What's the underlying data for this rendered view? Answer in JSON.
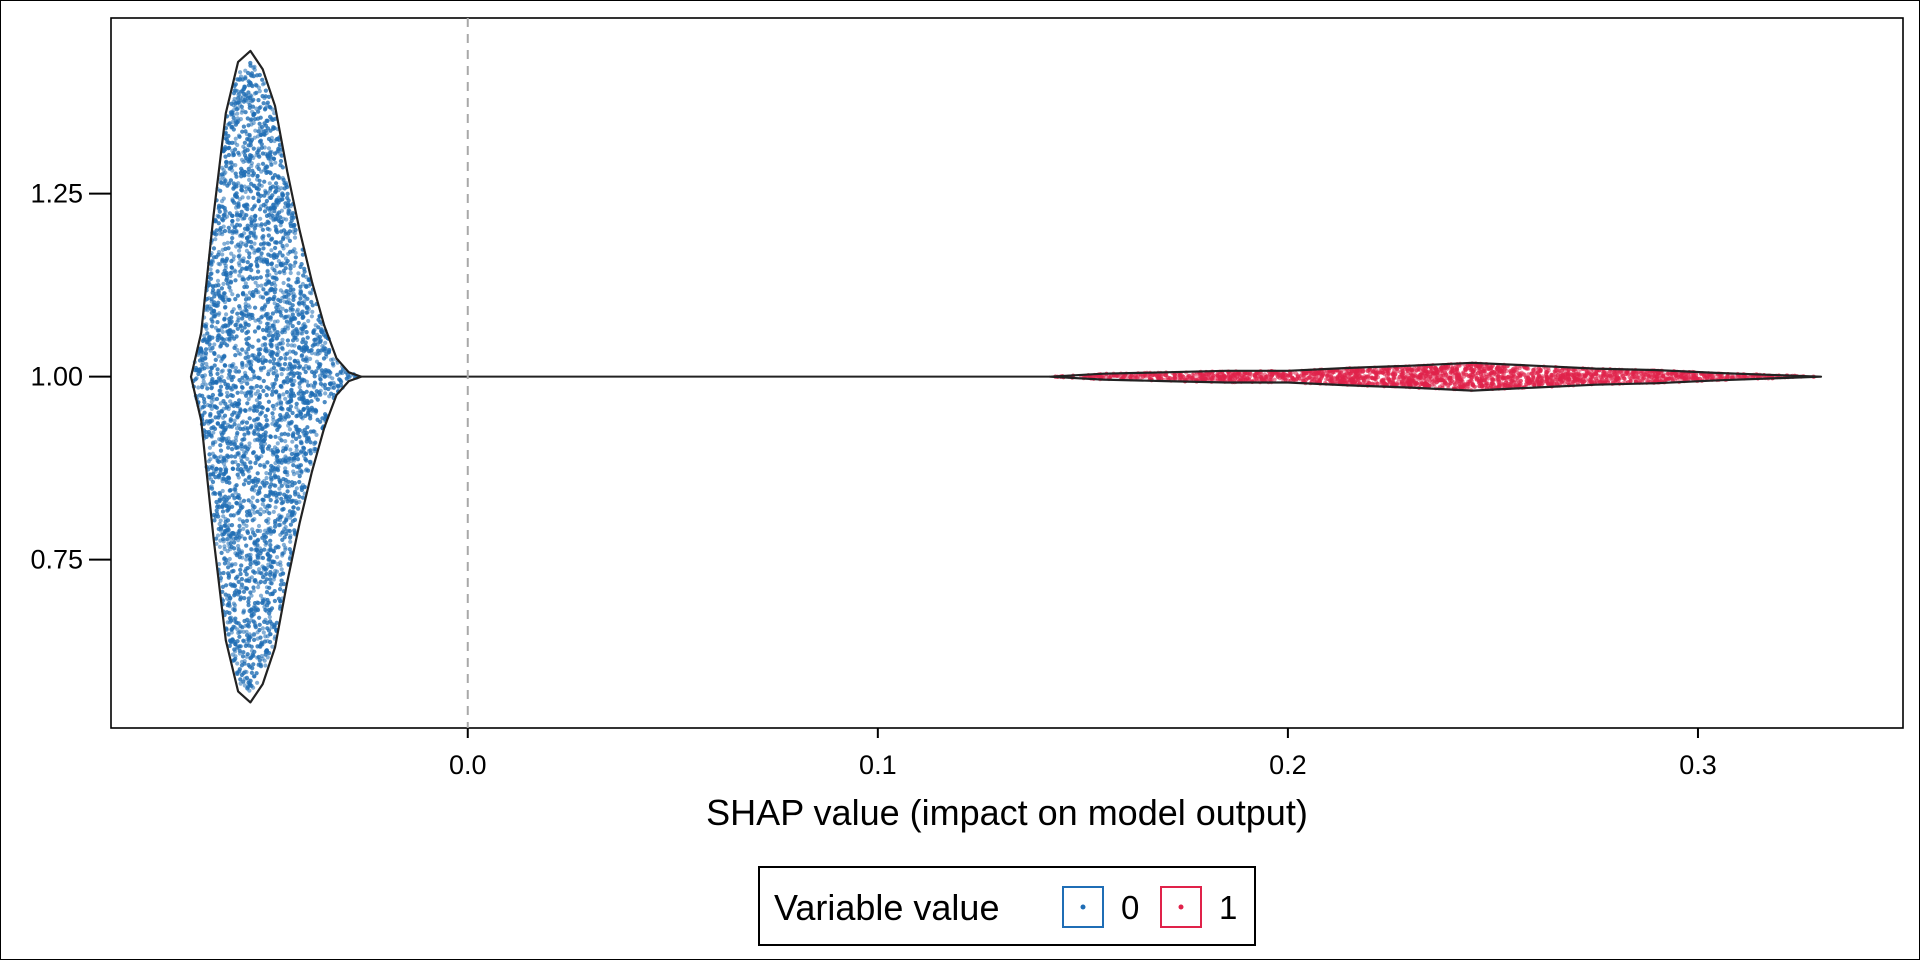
{
  "chart_data": {
    "type": "violin-beeswarm",
    "xlabel": "SHAP value (impact on model output)",
    "ylabel": "",
    "xlim": [
      -0.087,
      0.35
    ],
    "ylim": [
      0.52,
      1.49
    ],
    "x_ticks": [
      "0.0",
      "0.1",
      "0.2",
      "0.3"
    ],
    "x_tick_values": [
      0.0,
      0.1,
      0.2,
      0.3
    ],
    "y_ticks": [
      "0.75",
      "1.00",
      "1.25"
    ],
    "y_tick_values": [
      0.75,
      1.0,
      1.25
    ],
    "reference_line_x": 0.0,
    "grid": false,
    "legend": {
      "title": "Variable value",
      "placement": "bottom-center",
      "entries": [
        {
          "label": "0",
          "color": "#1f6db5"
        },
        {
          "label": "1",
          "color": "#e0224a"
        }
      ]
    },
    "series": [
      {
        "name": "0",
        "color": "#1f6db5",
        "shap_range": [
          -0.067,
          -0.026
        ],
        "y_range": [
          0.557,
          1.446
        ],
        "profile": [
          {
            "x": -0.0675,
            "half": 0.0
          },
          {
            "x": -0.065,
            "half": 0.06
          },
          {
            "x": -0.062,
            "half": 0.22
          },
          {
            "x": -0.059,
            "half": 0.36
          },
          {
            "x": -0.056,
            "half": 0.43
          },
          {
            "x": -0.053,
            "half": 0.445
          },
          {
            "x": -0.05,
            "half": 0.42
          },
          {
            "x": -0.047,
            "half": 0.37
          },
          {
            "x": -0.044,
            "half": 0.28
          },
          {
            "x": -0.041,
            "half": 0.2
          },
          {
            "x": -0.038,
            "half": 0.13
          },
          {
            "x": -0.035,
            "half": 0.07
          },
          {
            "x": -0.032,
            "half": 0.025
          },
          {
            "x": -0.029,
            "half": 0.006
          },
          {
            "x": -0.026,
            "half": 0.0
          }
        ]
      },
      {
        "name": "1",
        "color": "#e0224a",
        "shap_range": [
          0.142,
          0.33
        ],
        "y_range": [
          0.98,
          1.02
        ],
        "profile": [
          {
            "x": 0.142,
            "half": 0.0
          },
          {
            "x": 0.155,
            "half": 0.004
          },
          {
            "x": 0.17,
            "half": 0.006
          },
          {
            "x": 0.185,
            "half": 0.008
          },
          {
            "x": 0.2,
            "half": 0.008
          },
          {
            "x": 0.215,
            "half": 0.012
          },
          {
            "x": 0.23,
            "half": 0.015
          },
          {
            "x": 0.245,
            "half": 0.019
          },
          {
            "x": 0.26,
            "half": 0.015
          },
          {
            "x": 0.275,
            "half": 0.011
          },
          {
            "x": 0.29,
            "half": 0.009
          },
          {
            "x": 0.305,
            "half": 0.005
          },
          {
            "x": 0.32,
            "half": 0.002
          },
          {
            "x": 0.33,
            "half": 0.0
          }
        ]
      }
    ]
  }
}
